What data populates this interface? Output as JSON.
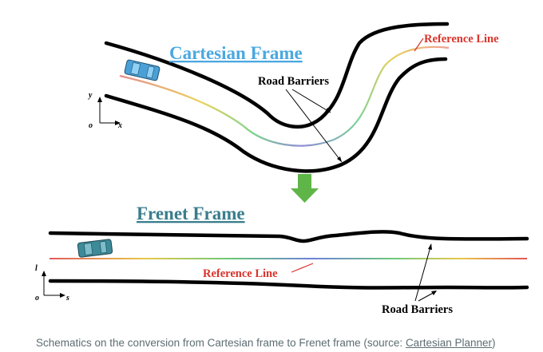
{
  "cartesian": {
    "title": "Cartesian Frame",
    "reference_label": "Reference Line",
    "barrier_label": "Road Barriers",
    "axis_y": "y",
    "axis_x": "x",
    "axis_origin": "o"
  },
  "frenet": {
    "title": "Frenet Frame",
    "reference_label": "Reference Line",
    "barrier_label": "Road Barriers",
    "axis_y": "l",
    "axis_x": "s",
    "axis_origin": "o"
  },
  "caption": {
    "text": "Schematics on the conversion from Cartesian frame to Frenet frame (source: ",
    "link": "Cartesian Planner",
    "suffix": ")"
  },
  "colors": {
    "cartesian_title": "#4aa8e0",
    "frenet_title": "#3a7d8c",
    "reference_label": "#d9342b",
    "arrow": "#5fb548",
    "car_cartesian": "#4aa0d6",
    "car_frenet": "#3d8a98"
  }
}
